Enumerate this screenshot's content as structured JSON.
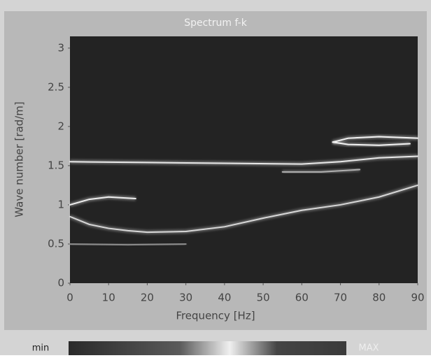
{
  "chart_data": {
    "type": "line",
    "title": "Spectrum f-k",
    "xlabel": "Frequency [Hz]",
    "ylabel": "Wave number [rad/m]",
    "xlim": [
      0,
      90
    ],
    "xticks": [
      0,
      10,
      20,
      30,
      40,
      50,
      60,
      70,
      80,
      90
    ],
    "ylim": [
      0,
      3.15
    ],
    "yticks": [
      0,
      0.5,
      1,
      1.5,
      2,
      2.5,
      3
    ],
    "series": [
      {
        "color": "#d8d8d8",
        "x": [
          0,
          5,
          10,
          15,
          20,
          30,
          40,
          50,
          55,
          60,
          70,
          80,
          90
        ],
        "values": [
          0.85,
          0.75,
          0.7,
          0.67,
          0.65,
          0.66,
          0.72,
          0.83,
          0.88,
          0.93,
          1.0,
          1.1,
          1.25
        ]
      },
      {
        "color": "#e8e8e8",
        "x": [
          0,
          20,
          40,
          60,
          70,
          80,
          90
        ],
        "values": [
          1.55,
          1.54,
          1.53,
          1.52,
          1.55,
          1.6,
          1.62
        ]
      },
      {
        "color": "#f4f4f4",
        "x": [
          68,
          72,
          80,
          90
        ],
        "values": [
          1.8,
          1.85,
          1.87,
          1.85
        ]
      },
      {
        "color": "#f4f4f4",
        "x": [
          68,
          72,
          80,
          88
        ],
        "values": [
          1.8,
          1.77,
          1.76,
          1.78
        ]
      },
      {
        "color": "#eeeeee",
        "x": [
          0,
          5,
          10,
          17
        ],
        "values": [
          1.0,
          1.07,
          1.1,
          1.08
        ]
      },
      {
        "color": "#8a8a8a",
        "x": [
          0,
          15,
          30
        ],
        "values": [
          0.5,
          0.49,
          0.5
        ]
      },
      {
        "color": "#b0b0b0",
        "x": [
          55,
          65,
          75
        ],
        "values": [
          1.42,
          1.42,
          1.45
        ]
      }
    ],
    "colorbar": {
      "min_label": "min",
      "max_label": "MAX"
    }
  }
}
